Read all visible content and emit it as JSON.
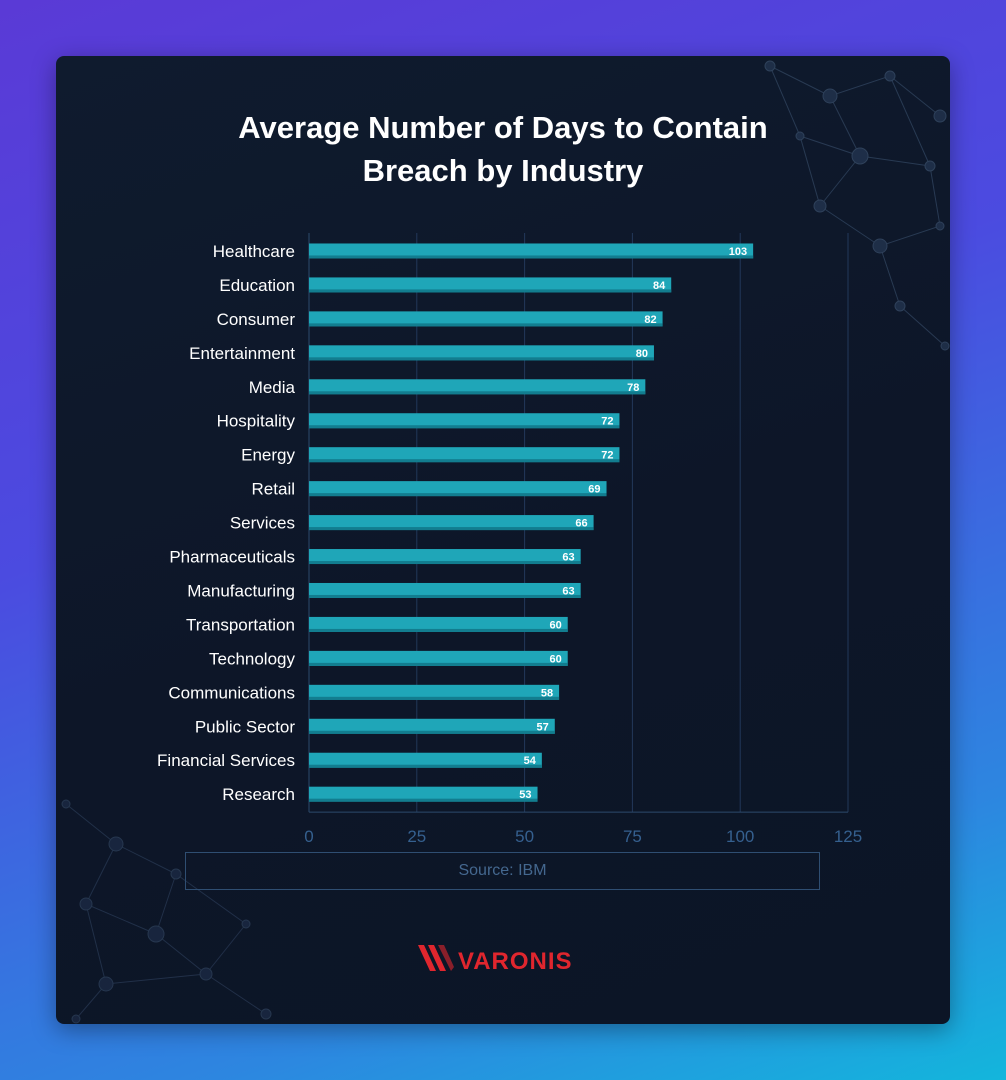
{
  "chart_data": {
    "type": "bar",
    "orientation": "horizontal",
    "title": "Average Number of Days to Contain Breach by Industry",
    "categories": [
      "Healthcare",
      "Education",
      "Consumer",
      "Entertainment",
      "Media",
      "Hospitality",
      "Energy",
      "Retail",
      "Services",
      "Pharmaceuticals",
      "Manufacturing",
      "Transportation",
      "Technology",
      "Communications",
      "Public Sector",
      "Financial Services",
      "Research"
    ],
    "values": [
      103,
      84,
      82,
      80,
      78,
      72,
      72,
      69,
      66,
      63,
      63,
      60,
      60,
      58,
      57,
      54,
      53
    ],
    "xlim": [
      0,
      125
    ],
    "xticks": [
      0,
      25,
      50,
      75,
      100,
      125
    ],
    "grid": true,
    "bar_color": "#1fa6b8",
    "source": "Source: IBM"
  },
  "brand": {
    "name": "VARONIS",
    "color": "#e0262e"
  }
}
